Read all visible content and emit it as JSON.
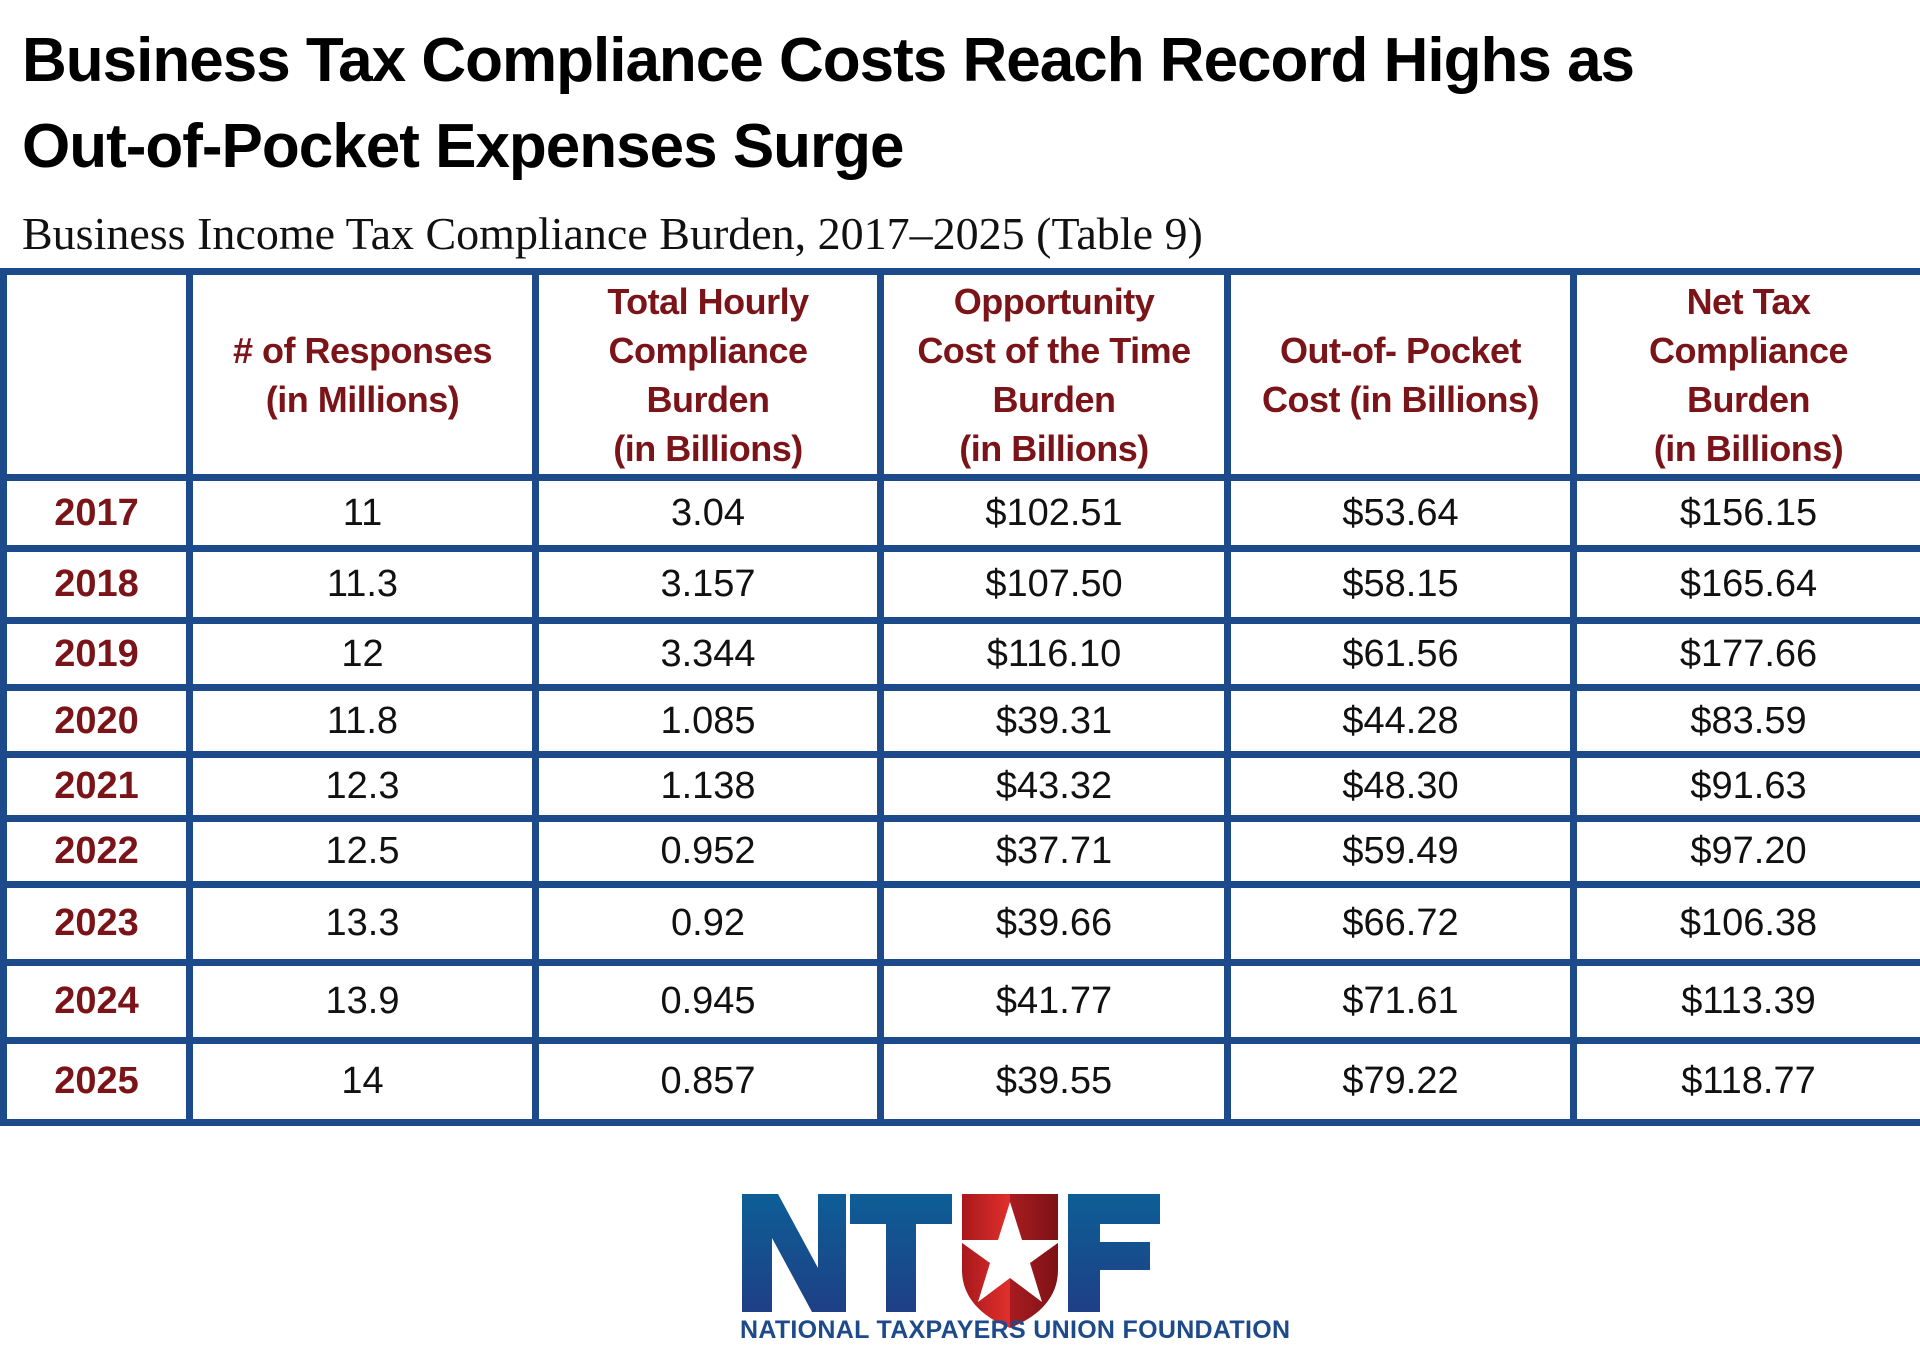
{
  "header": {
    "title_line1": "Business Tax Compliance Costs Reach Record Highs as",
    "title_line2": "Out-of-Pocket Expenses Surge",
    "subtitle": "Business Income Tax Compliance Burden, 2017–2025 (Table 9)"
  },
  "table": {
    "columns": [
      "",
      "# of Responses (in Millions)",
      "Total Hourly Compliance Burden (in Billions)",
      "Opportunity Cost of the Time Burden (in Billions)",
      "Out-of- Pocket Cost (in Billions)",
      "Net Tax Compliance Burden (in Billions)"
    ],
    "column_lines": [
      [],
      [
        "# of Responses",
        "(in Millions)"
      ],
      [
        "Total Hourly",
        "Compliance",
        "Burden",
        "(in Billions)"
      ],
      [
        "Opportunity",
        "Cost of the Time",
        "Burden",
        "(in Billions)"
      ],
      [
        "Out-of- Pocket",
        "Cost (in Billions)"
      ],
      [
        "Net Tax",
        "Compliance",
        "Burden",
        "(in Billions)"
      ]
    ],
    "rows": [
      [
        "2017",
        "11",
        "3.04",
        "$102.51",
        "$53.64",
        "$156.15"
      ],
      [
        "2018",
        "11.3",
        "3.157",
        "$107.50",
        "$58.15",
        "$165.64"
      ],
      [
        "2019",
        "12",
        "3.344",
        "$116.10",
        "$61.56",
        "$177.66"
      ],
      [
        "2020",
        "11.8",
        "1.085",
        "$39.31",
        "$44.28",
        "$83.59"
      ],
      [
        "2021",
        "12.3",
        "1.138",
        "$43.32",
        "$48.30",
        "$91.63"
      ],
      [
        "2022",
        "12.5",
        "0.952",
        "$37.71",
        "$59.49",
        "$97.20"
      ],
      [
        "2023",
        "13.3",
        "0.92",
        "$39.66",
        "$66.72",
        "$106.38"
      ],
      [
        "2024",
        "13.9",
        "0.945",
        "$41.77",
        "$71.61",
        "$113.39"
      ],
      [
        "2025",
        "14",
        "0.857",
        "$39.55",
        "$79.22",
        "$118.77"
      ]
    ]
  },
  "logo": {
    "letters": "NTUF",
    "name": "NATIONAL TAXPAYERS UNION FOUNDATION"
  },
  "colors": {
    "border": "#1d4a8a",
    "header_text": "#7b1418",
    "logo_blue": "#1d4a8a",
    "logo_red": "#c8272a"
  }
}
